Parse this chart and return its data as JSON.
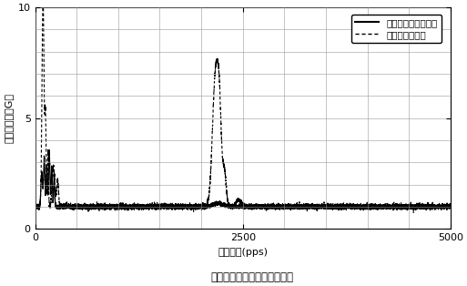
{
  "title": "振动特性比较（细分驱动时）",
  "xlabel": "驱动频率(pps)",
  "ylabel": "振动加速度（G）",
  "xlim": [
    0,
    5000
  ],
  "ylim": [
    0,
    10
  ],
  "yticks": [
    0,
    5,
    10
  ],
  "xticks": [
    0,
    2500,
    5000
  ],
  "legend_solid": "：新方式定子齿结构",
  "legend_dashed": "传统定子齿结构",
  "grid_color": "#999999",
  "line_color": "#000000",
  "bg_color": "#ffffff",
  "minor_xticks": [
    500,
    1000,
    1500,
    2000,
    2500,
    3000,
    3500,
    4000,
    4500,
    5000
  ],
  "minor_yticks": [
    1,
    2,
    3,
    4,
    5,
    6,
    7,
    8,
    9,
    10
  ]
}
